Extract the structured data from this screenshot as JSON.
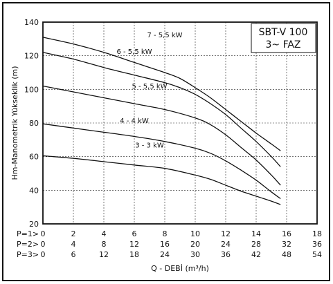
{
  "chart_data": {
    "type": "line",
    "title": [
      "SBT-V 100",
      "3~ FAZ"
    ],
    "xlabel": "Q - DEBİ (m³/h)",
    "ylabel": "Hm-Manometrik Yükseklik (m)",
    "ylim": [
      20,
      140
    ],
    "yticks": [
      "20",
      "40",
      "60",
      "80",
      "100",
      "120",
      "140"
    ],
    "xlim": [
      0,
      18
    ],
    "x_scales": [
      {
        "label": "P=1>",
        "ticks": [
          "0",
          "2",
          "4",
          "6",
          "8",
          "10",
          "12",
          "14",
          "16",
          "18"
        ]
      },
      {
        "label": "P=2>",
        "ticks": [
          "0",
          "4",
          "8",
          "12",
          "16",
          "20",
          "24",
          "28",
          "32",
          "36"
        ]
      },
      {
        "label": "P=3>",
        "ticks": [
          "0",
          "6",
          "12",
          "18",
          "24",
          "30",
          "36",
          "42",
          "48",
          "54"
        ]
      }
    ],
    "grid": true,
    "series": [
      {
        "name": "7 - 5,5 kW",
        "points": [
          [
            0,
            131
          ],
          [
            2,
            127
          ],
          [
            4,
            122
          ],
          [
            6,
            116
          ],
          [
            8,
            110
          ],
          [
            9,
            106.5
          ],
          [
            10,
            101
          ],
          [
            11,
            95
          ],
          [
            12,
            88
          ],
          [
            13,
            81
          ],
          [
            14,
            74
          ],
          [
            15,
            67.5
          ],
          [
            15.6,
            63.5
          ]
        ]
      },
      {
        "name": "6 - 5,5 kW",
        "points": [
          [
            0,
            122
          ],
          [
            2,
            118
          ],
          [
            4,
            113
          ],
          [
            6,
            108.5
          ],
          [
            8,
            104
          ],
          [
            9,
            101
          ],
          [
            10,
            97
          ],
          [
            11,
            91.5
          ],
          [
            12,
            85
          ],
          [
            13,
            77
          ],
          [
            14,
            69
          ],
          [
            15,
            60
          ],
          [
            15.6,
            54
          ]
        ]
      },
      {
        "name": "5 - 5,5 kW",
        "points": [
          [
            0,
            102
          ],
          [
            2,
            98.5
          ],
          [
            4,
            95
          ],
          [
            6,
            91.5
          ],
          [
            8,
            88
          ],
          [
            10,
            83
          ],
          [
            11,
            79
          ],
          [
            12,
            73
          ],
          [
            13,
            65.5
          ],
          [
            14,
            58
          ],
          [
            15,
            49
          ],
          [
            15.6,
            43
          ]
        ]
      },
      {
        "name": "4 - 4 kW",
        "points": [
          [
            0,
            79.5
          ],
          [
            2,
            77
          ],
          [
            4,
            74.5
          ],
          [
            6,
            72
          ],
          [
            8,
            69
          ],
          [
            10,
            65
          ],
          [
            11,
            62
          ],
          [
            12,
            57.5
          ],
          [
            13,
            52
          ],
          [
            14,
            46
          ],
          [
            15,
            39
          ],
          [
            15.6,
            35
          ]
        ]
      },
      {
        "name": "3 - 3 kW",
        "points": [
          [
            0,
            60.5
          ],
          [
            2,
            59
          ],
          [
            4,
            57
          ],
          [
            6,
            55
          ],
          [
            8,
            53
          ],
          [
            10,
            49
          ],
          [
            11,
            46.5
          ],
          [
            12,
            43
          ],
          [
            13,
            39.5
          ],
          [
            14,
            36.5
          ],
          [
            15,
            33.5
          ],
          [
            15.6,
            31.5
          ]
        ]
      }
    ]
  }
}
